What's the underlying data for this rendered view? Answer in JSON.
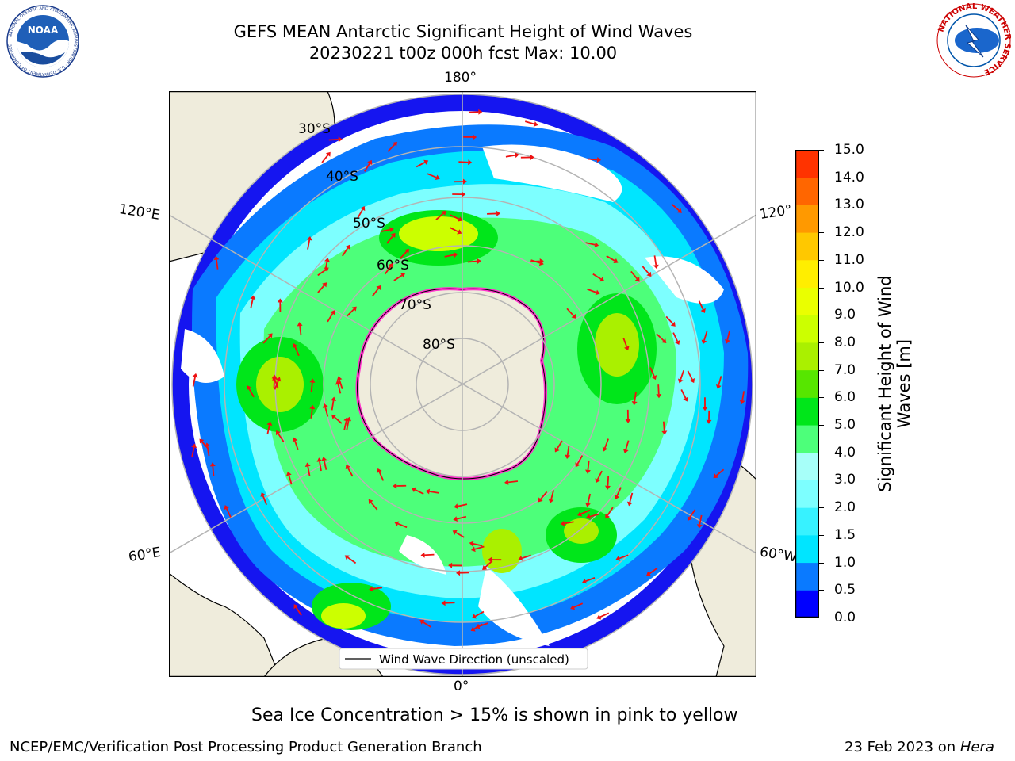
{
  "title": {
    "line1": "GEFS MEAN Antarctic Significant Height of Wind Waves",
    "line2": "20230221 t00z 000h fcst   Max: 10.00"
  },
  "map": {
    "projection": "south-polar-stereographic",
    "longitude_labels": {
      "top": "180°",
      "bottom": "0°",
      "upper_left": "120°E",
      "upper_right": "120°",
      "lower_left": "60°E",
      "lower_right": "60°W"
    },
    "latitude_labels": [
      "30°S",
      "40°S",
      "50°S",
      "60°S",
      "70°S",
      "80°S"
    ],
    "legend_entry": "Wind Wave Direction (unscaled)",
    "colors": {
      "land": "#efecdc",
      "ocean_no_waves": "#ffffff",
      "graticule": "#b4b4b4",
      "direction_arrow": "#ee1111",
      "sea_ice_edge": "#ff33cc"
    }
  },
  "colorbar": {
    "label": "Significant Height of Wind Waves [m]",
    "ticks": [
      "0.0",
      "0.5",
      "1.0",
      "1.5",
      "2.0",
      "3.0",
      "4.0",
      "5.0",
      "6.0",
      "7.0",
      "8.0",
      "9.0",
      "10.0",
      "11.0",
      "12.0",
      "13.0",
      "14.0",
      "15.0"
    ],
    "colors": [
      "#0000ff",
      "#0a7aff",
      "#00e5ff",
      "#37f2ff",
      "#7dffff",
      "#a7fff9",
      "#4dff7a",
      "#00e61a",
      "#57e600",
      "#aaf000",
      "#ccff00",
      "#eaff00",
      "#ffee00",
      "#ffc800",
      "#ff9900",
      "#ff6600",
      "#ff3300",
      "#ff0000"
    ]
  },
  "annotations": {
    "sea_ice_note": "Sea Ice Concentration > 15% is shown in pink to yellow",
    "producer": "NCEP/EMC/Verification Post Processing Product Generation Branch",
    "date_prefix": "23 Feb 2023 on ",
    "machine": "Hera"
  },
  "logos": {
    "noaa": {
      "text": "NOAA",
      "ring_text": "NATIONAL OCEANIC AND ATMOSPHERIC ADMINISTRATION · U.S. DEPARTMENT OF COMMERCE"
    },
    "nws": {
      "ring_text": "NATIONAL WEATHER SERVICE"
    }
  }
}
